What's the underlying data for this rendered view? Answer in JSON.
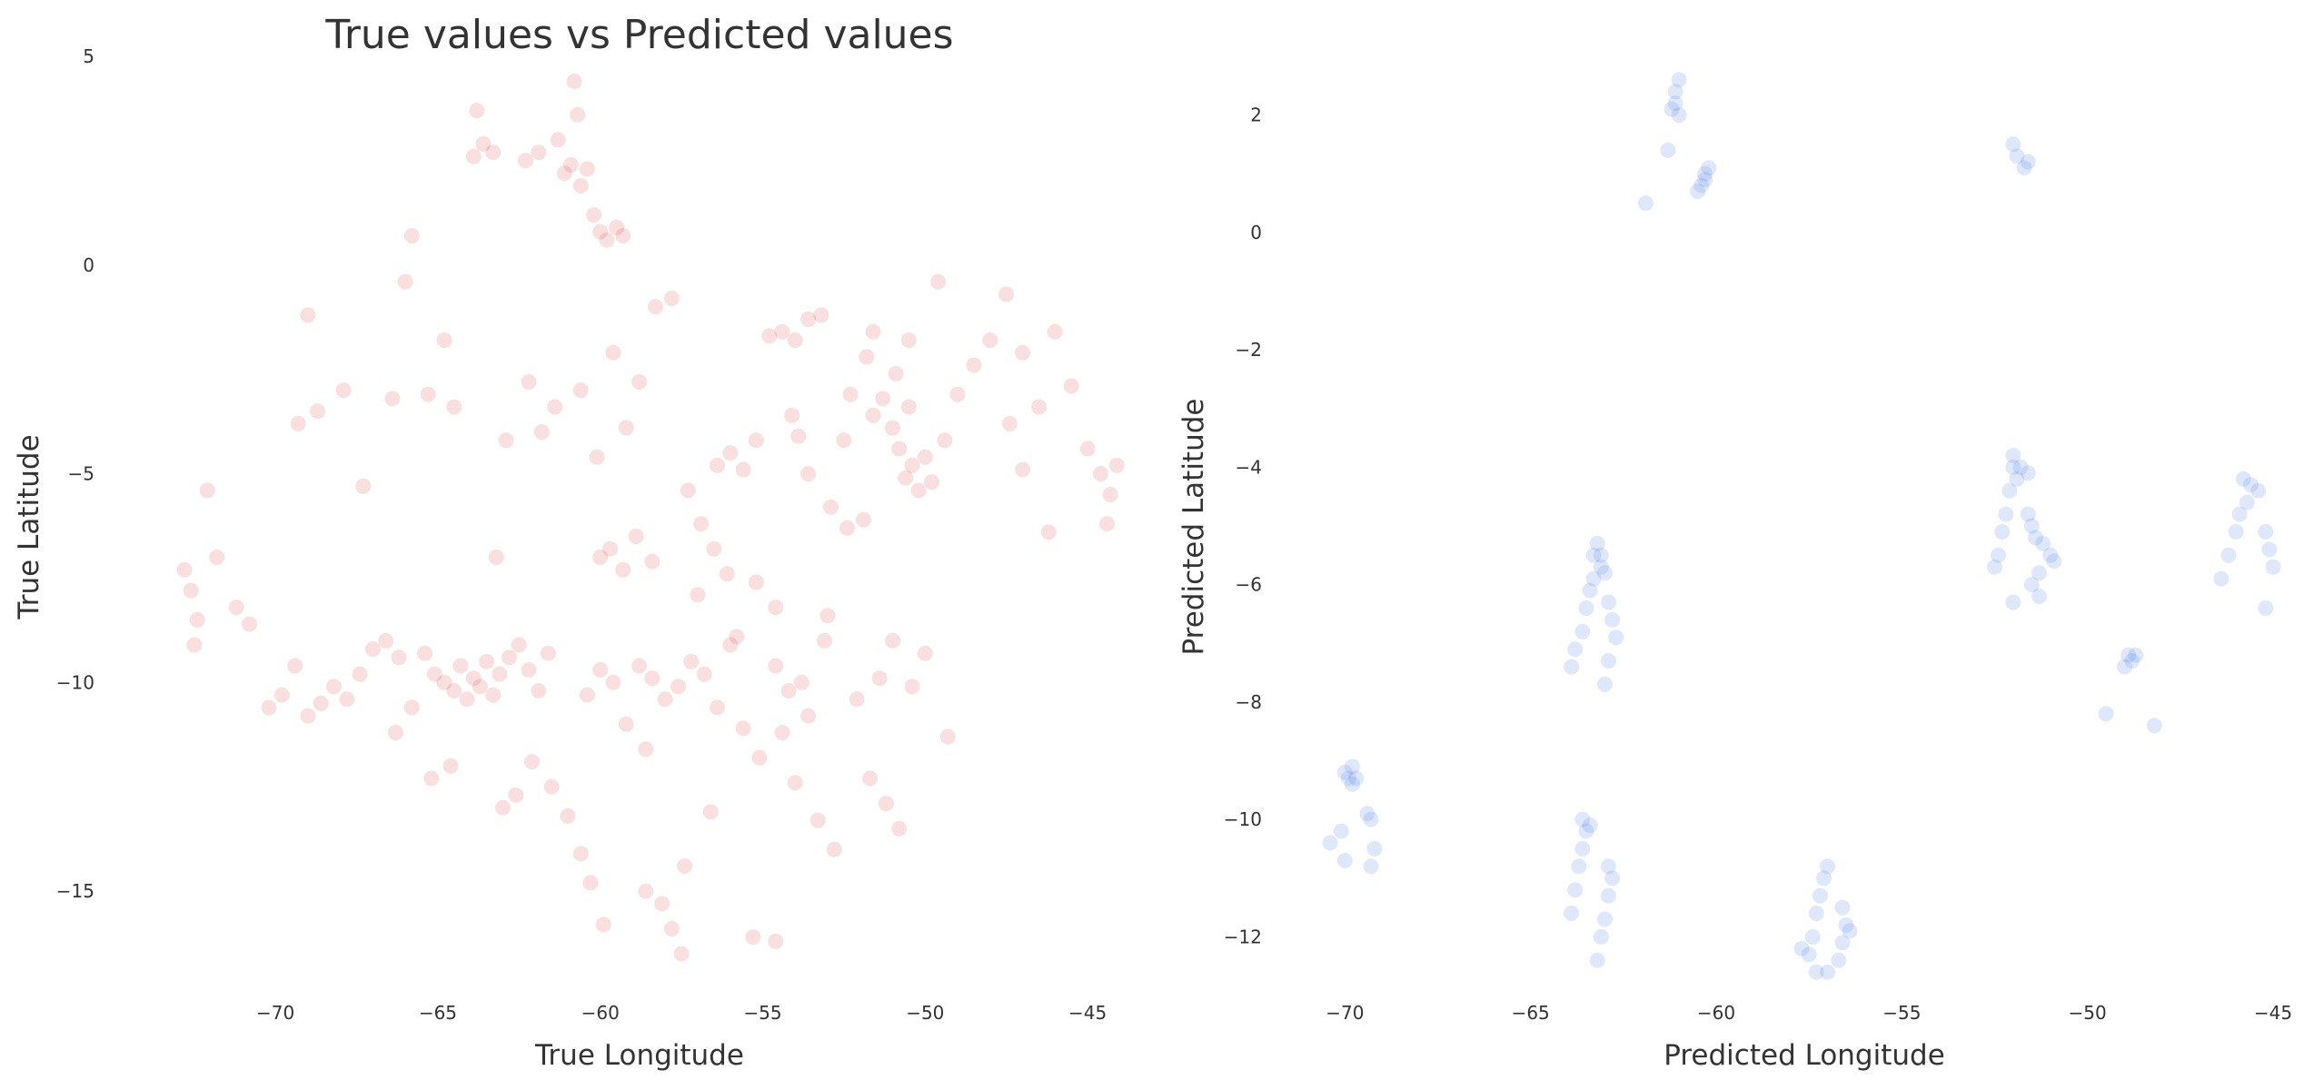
{
  "chart_data": [
    {
      "type": "scatter",
      "title": "True values vs Predicted values",
      "xlabel": "True Longitude",
      "ylabel": "True Latitude",
      "xlim": [
        -73.5,
        -43.8
      ],
      "ylim": [
        -17.5,
        5
      ],
      "xticks": [
        -70,
        -65,
        -60,
        -55,
        -50,
        -45
      ],
      "yticks": [
        5,
        0,
        -5,
        -10,
        -15
      ],
      "xtick_labels": [
        "−70",
        "−65",
        "−60",
        "−55",
        "−50",
        "−45"
      ],
      "ytick_labels": [
        "5",
        "0",
        "−5",
        "−10",
        "−15"
      ],
      "grid": false,
      "color": "#d62728",
      "alpha": 0.15,
      "points": [
        [
          -72.8,
          -7.3
        ],
        [
          -72.6,
          -7.8
        ],
        [
          -72.4,
          -8.5
        ],
        [
          -72.5,
          -9.1
        ],
        [
          -72.1,
          -5.4
        ],
        [
          -71.8,
          -7.0
        ],
        [
          -71.2,
          -8.2
        ],
        [
          -70.8,
          -8.6
        ],
        [
          -70.2,
          -10.6
        ],
        [
          -69.8,
          -10.3
        ],
        [
          -69.4,
          -9.6
        ],
        [
          -69.0,
          -10.8
        ],
        [
          -68.6,
          -10.5
        ],
        [
          -68.2,
          -10.1
        ],
        [
          -67.8,
          -10.4
        ],
        [
          -67.4,
          -9.8
        ],
        [
          -67.0,
          -9.2
        ],
        [
          -66.6,
          -9.0
        ],
        [
          -66.2,
          -9.4
        ],
        [
          -69.3,
          -3.8
        ],
        [
          -68.7,
          -3.5
        ],
        [
          -67.9,
          -3.0
        ],
        [
          -69.0,
          -1.2
        ],
        [
          -67.3,
          -5.3
        ],
        [
          -66.4,
          -3.2
        ],
        [
          -66.0,
          -0.4
        ],
        [
          -65.8,
          0.7
        ],
        [
          -65.3,
          -3.1
        ],
        [
          -64.8,
          -1.8
        ],
        [
          -64.5,
          -3.4
        ],
        [
          -65.4,
          -9.3
        ],
        [
          -65.1,
          -9.8
        ],
        [
          -64.8,
          -10.0
        ],
        [
          -64.5,
          -10.2
        ],
        [
          -64.3,
          -9.6
        ],
        [
          -64.1,
          -10.4
        ],
        [
          -63.9,
          -9.9
        ],
        [
          -63.7,
          -10.1
        ],
        [
          -63.5,
          -9.5
        ],
        [
          -63.3,
          -10.3
        ],
        [
          -63.1,
          -9.8
        ],
        [
          -62.8,
          -9.4
        ],
        [
          -62.5,
          -9.1
        ],
        [
          -62.2,
          -9.7
        ],
        [
          -61.9,
          -10.2
        ],
        [
          -61.6,
          -9.3
        ],
        [
          -63.9,
          2.6
        ],
        [
          -63.6,
          2.9
        ],
        [
          -63.3,
          2.7
        ],
        [
          -63.8,
          3.7
        ],
        [
          -62.3,
          2.5
        ],
        [
          -61.9,
          2.7
        ],
        [
          -61.3,
          3.0
        ],
        [
          -61.1,
          2.2
        ],
        [
          -60.9,
          2.4
        ],
        [
          -60.6,
          1.9
        ],
        [
          -60.4,
          2.3
        ],
        [
          -60.2,
          1.2
        ],
        [
          -60.0,
          0.8
        ],
        [
          -59.8,
          0.6
        ],
        [
          -59.5,
          0.9
        ],
        [
          -59.3,
          0.7
        ],
        [
          -60.7,
          3.6
        ],
        [
          -60.8,
          4.4
        ],
        [
          -63.2,
          -7.0
        ],
        [
          -62.9,
          -4.2
        ],
        [
          -62.2,
          -2.8
        ],
        [
          -61.8,
          -4.0
        ],
        [
          -61.4,
          -3.4
        ],
        [
          -60.6,
          -3.0
        ],
        [
          -60.0,
          -7.0
        ],
        [
          -59.7,
          -6.8
        ],
        [
          -59.3,
          -7.3
        ],
        [
          -58.9,
          -6.5
        ],
        [
          -58.4,
          -7.1
        ],
        [
          -60.1,
          -4.6
        ],
        [
          -59.6,
          -2.1
        ],
        [
          -59.2,
          -3.9
        ],
        [
          -58.8,
          -2.8
        ],
        [
          -58.3,
          -1.0
        ],
        [
          -57.8,
          -0.8
        ],
        [
          -57.3,
          -5.4
        ],
        [
          -56.9,
          -6.2
        ],
        [
          -56.5,
          -6.8
        ],
        [
          -56.1,
          -7.4
        ],
        [
          -56.4,
          -4.8
        ],
        [
          -56.0,
          -4.5
        ],
        [
          -55.6,
          -4.9
        ],
        [
          -55.2,
          -4.2
        ],
        [
          -54.8,
          -1.7
        ],
        [
          -54.4,
          -1.6
        ],
        [
          -54.0,
          -1.8
        ],
        [
          -53.6,
          -1.3
        ],
        [
          -53.2,
          -1.2
        ],
        [
          -54.1,
          -3.6
        ],
        [
          -53.9,
          -4.1
        ],
        [
          -53.6,
          -5.0
        ],
        [
          -52.9,
          -5.8
        ],
        [
          -52.4,
          -6.3
        ],
        [
          -51.9,
          -6.1
        ],
        [
          -51.6,
          -3.6
        ],
        [
          -51.3,
          -3.2
        ],
        [
          -51.0,
          -3.9
        ],
        [
          -50.8,
          -4.4
        ],
        [
          -50.6,
          -5.1
        ],
        [
          -50.4,
          -4.8
        ],
        [
          -50.2,
          -5.4
        ],
        [
          -50.0,
          -4.6
        ],
        [
          -49.8,
          -5.2
        ],
        [
          -50.5,
          -3.4
        ],
        [
          -50.9,
          -2.6
        ],
        [
          -51.8,
          -2.2
        ],
        [
          -52.3,
          -3.1
        ],
        [
          -49.4,
          -4.2
        ],
        [
          -49.0,
          -3.1
        ],
        [
          -48.5,
          -2.4
        ],
        [
          -48.0,
          -1.8
        ],
        [
          -47.5,
          -0.7
        ],
        [
          -47.0,
          -2.1
        ],
        [
          -46.5,
          -3.4
        ],
        [
          -46.0,
          -1.6
        ],
        [
          -45.5,
          -2.9
        ],
        [
          -45.0,
          -4.4
        ],
        [
          -44.6,
          -5.0
        ],
        [
          -44.3,
          -5.5
        ],
        [
          -44.1,
          -4.8
        ],
        [
          -44.4,
          -6.2
        ],
        [
          -47.4,
          -3.8
        ],
        [
          -47.0,
          -4.9
        ],
        [
          -46.2,
          -6.4
        ],
        [
          -58.8,
          -9.6
        ],
        [
          -58.4,
          -9.9
        ],
        [
          -58.0,
          -10.4
        ],
        [
          -57.6,
          -10.1
        ],
        [
          -57.2,
          -9.5
        ],
        [
          -56.8,
          -9.8
        ],
        [
          -56.4,
          -10.6
        ],
        [
          -59.6,
          -10.0
        ],
        [
          -60.0,
          -9.7
        ],
        [
          -60.4,
          -10.3
        ],
        [
          -59.2,
          -11.0
        ],
        [
          -58.6,
          -11.6
        ],
        [
          -54.6,
          -9.6
        ],
        [
          -54.2,
          -10.2
        ],
        [
          -53.8,
          -10.0
        ],
        [
          -54.4,
          -11.2
        ],
        [
          -54.0,
          -12.4
        ],
        [
          -55.1,
          -11.8
        ],
        [
          -55.6,
          -11.1
        ],
        [
          -52.1,
          -10.4
        ],
        [
          -51.4,
          -9.9
        ],
        [
          -51.0,
          -9.0
        ],
        [
          -50.4,
          -10.1
        ],
        [
          -50.0,
          -9.3
        ],
        [
          -51.7,
          -12.3
        ],
        [
          -51.2,
          -12.9
        ],
        [
          -50.8,
          -13.5
        ],
        [
          -61.5,
          -12.5
        ],
        [
          -61.0,
          -13.2
        ],
        [
          -60.6,
          -14.1
        ],
        [
          -60.3,
          -14.8
        ],
        [
          -59.9,
          -15.8
        ],
        [
          -58.6,
          -15.0
        ],
        [
          -58.1,
          -15.3
        ],
        [
          -57.8,
          -15.9
        ],
        [
          -57.5,
          -16.5
        ],
        [
          -55.3,
          -16.1
        ],
        [
          -54.6,
          -16.2
        ],
        [
          -57.4,
          -14.4
        ],
        [
          -56.6,
          -13.1
        ],
        [
          -53.3,
          -13.3
        ],
        [
          -52.8,
          -14.0
        ],
        [
          -49.3,
          -11.3
        ],
        [
          -62.6,
          -12.7
        ],
        [
          -62.1,
          -11.9
        ],
        [
          -63.0,
          -13.0
        ],
        [
          -64.6,
          -12.0
        ],
        [
          -65.2,
          -12.3
        ],
        [
          -66.3,
          -11.2
        ],
        [
          -65.8,
          -10.6
        ],
        [
          -52.5,
          -4.2
        ],
        [
          -51.6,
          -1.6
        ],
        [
          -50.5,
          -1.8
        ],
        [
          -49.6,
          -0.4
        ],
        [
          -53.0,
          -8.4
        ],
        [
          -54.6,
          -8.2
        ],
        [
          -55.2,
          -7.6
        ],
        [
          -55.8,
          -8.9
        ],
        [
          -53.6,
          -10.8
        ],
        [
          -53.1,
          -9.0
        ],
        [
          -57.0,
          -7.9
        ],
        [
          -56.0,
          -9.1
        ]
      ]
    },
    {
      "type": "scatter",
      "title": "",
      "xlabel": "Predicted Longitude",
      "ylabel": "Predicted Latitude",
      "xlim": [
        -70.4,
        -45.0
      ],
      "ylim": [
        -13.0,
        3.0
      ],
      "xticks": [
        -70,
        -65,
        -60,
        -55,
        -50,
        -45
      ],
      "yticks": [
        2,
        0,
        -2,
        -4,
        -6,
        -8,
        -10,
        -12
      ],
      "xtick_labels": [
        "−70",
        "−65",
        "−60",
        "−55",
        "−50",
        "−45"
      ],
      "ytick_labels": [
        "2",
        "0",
        "−2",
        "−4",
        "−6",
        "−8",
        "−10",
        "−12"
      ],
      "grid": false,
      "color": "#4f81e6",
      "alpha": 0.18,
      "points": [
        [
          -61.0,
          2.6
        ],
        [
          -61.1,
          2.4
        ],
        [
          -61.1,
          2.2
        ],
        [
          -61.2,
          2.1
        ],
        [
          -61.0,
          2.0
        ],
        [
          -61.3,
          1.4
        ],
        [
          -61.9,
          0.5
        ],
        [
          -60.2,
          1.1
        ],
        [
          -60.3,
          0.9
        ],
        [
          -60.4,
          0.8
        ],
        [
          -60.5,
          0.7
        ],
        [
          -60.3,
          1.0
        ],
        [
          -52.0,
          1.5
        ],
        [
          -51.9,
          1.3
        ],
        [
          -51.6,
          1.2
        ],
        [
          -51.7,
          1.1
        ],
        [
          -63.2,
          -5.3
        ],
        [
          -63.3,
          -5.5
        ],
        [
          -63.1,
          -5.7
        ],
        [
          -63.3,
          -5.9
        ],
        [
          -63.4,
          -6.1
        ],
        [
          -63.5,
          -6.4
        ],
        [
          -63.6,
          -6.8
        ],
        [
          -63.8,
          -7.1
        ],
        [
          -63.9,
          -7.4
        ],
        [
          -63.0,
          -5.8
        ],
        [
          -62.9,
          -6.3
        ],
        [
          -62.8,
          -6.6
        ],
        [
          -62.7,
          -6.9
        ],
        [
          -62.9,
          -7.3
        ],
        [
          -63.0,
          -7.7
        ],
        [
          -63.1,
          -5.5
        ],
        [
          -69.8,
          -9.1
        ],
        [
          -69.9,
          -9.3
        ],
        [
          -70.0,
          -9.2
        ],
        [
          -69.8,
          -9.4
        ],
        [
          -69.7,
          -9.3
        ],
        [
          -69.4,
          -9.9
        ],
        [
          -69.3,
          -10.0
        ],
        [
          -69.2,
          -10.5
        ],
        [
          -69.3,
          -10.8
        ],
        [
          -70.1,
          -10.2
        ],
        [
          -70.0,
          -10.7
        ],
        [
          -70.4,
          -10.4
        ],
        [
          -63.6,
          -10.0
        ],
        [
          -63.5,
          -10.2
        ],
        [
          -63.6,
          -10.5
        ],
        [
          -63.7,
          -10.8
        ],
        [
          -63.8,
          -11.2
        ],
        [
          -63.9,
          -11.6
        ],
        [
          -63.4,
          -10.1
        ],
        [
          -62.8,
          -11.0
        ],
        [
          -62.9,
          -11.3
        ],
        [
          -63.0,
          -11.7
        ],
        [
          -63.1,
          -12.0
        ],
        [
          -63.2,
          -12.4
        ],
        [
          -62.9,
          -10.8
        ],
        [
          -57.0,
          -10.8
        ],
        [
          -57.1,
          -11.0
        ],
        [
          -57.2,
          -11.3
        ],
        [
          -57.3,
          -11.6
        ],
        [
          -57.4,
          -12.0
        ],
        [
          -57.5,
          -12.3
        ],
        [
          -56.6,
          -11.5
        ],
        [
          -56.5,
          -11.8
        ],
        [
          -56.6,
          -12.1
        ],
        [
          -56.7,
          -12.4
        ],
        [
          -56.4,
          -11.9
        ],
        [
          -57.7,
          -12.2
        ],
        [
          -57.3,
          -12.6
        ],
        [
          -57.0,
          -12.6
        ],
        [
          -52.0,
          -3.8
        ],
        [
          -52.0,
          -4.0
        ],
        [
          -51.9,
          -4.2
        ],
        [
          -51.8,
          -4.0
        ],
        [
          -51.6,
          -4.1
        ],
        [
          -52.1,
          -4.4
        ],
        [
          -52.2,
          -4.8
        ],
        [
          -52.3,
          -5.1
        ],
        [
          -52.4,
          -5.5
        ],
        [
          -52.5,
          -5.7
        ],
        [
          -51.6,
          -4.8
        ],
        [
          -51.5,
          -5.0
        ],
        [
          -51.4,
          -5.2
        ],
        [
          -51.2,
          -5.3
        ],
        [
          -51.0,
          -5.5
        ],
        [
          -50.9,
          -5.6
        ],
        [
          -51.3,
          -5.8
        ],
        [
          -51.5,
          -6.0
        ],
        [
          -52.0,
          -6.3
        ],
        [
          -51.3,
          -6.2
        ],
        [
          -45.8,
          -4.2
        ],
        [
          -45.6,
          -4.3
        ],
        [
          -45.4,
          -4.4
        ],
        [
          -45.7,
          -4.6
        ],
        [
          -45.9,
          -4.8
        ],
        [
          -46.0,
          -5.1
        ],
        [
          -46.2,
          -5.5
        ],
        [
          -46.4,
          -5.9
        ],
        [
          -45.2,
          -5.1
        ],
        [
          -45.1,
          -5.4
        ],
        [
          -45.0,
          -5.7
        ],
        [
          -45.2,
          -6.4
        ],
        [
          -48.9,
          -7.2
        ],
        [
          -49.0,
          -7.4
        ],
        [
          -48.8,
          -7.3
        ],
        [
          -48.7,
          -7.2
        ],
        [
          -49.5,
          -8.2
        ],
        [
          -48.2,
          -8.4
        ]
      ]
    }
  ]
}
